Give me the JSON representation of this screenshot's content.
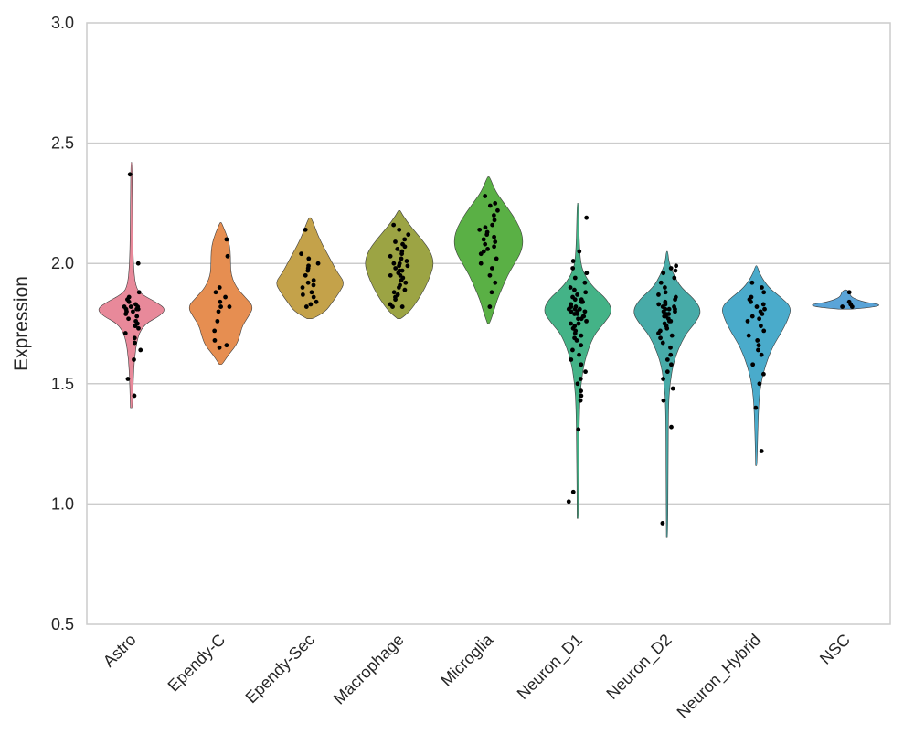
{
  "chart_data": {
    "type": "violin",
    "ylabel": "Expression",
    "ylim": [
      0.5,
      3.0
    ],
    "yticks": [
      "0.5",
      "1.0",
      "1.5",
      "2.0",
      "2.5",
      "3.0"
    ],
    "grid": true,
    "categories": [
      {
        "name": "Astro",
        "color": "#e8899a",
        "min": 1.4,
        "max": 2.42,
        "median": 1.81,
        "profile": [
          [
            1.4,
            0.03
          ],
          [
            1.5,
            0.05
          ],
          [
            1.6,
            0.08
          ],
          [
            1.7,
            0.18
          ],
          [
            1.75,
            0.4
          ],
          [
            1.78,
            0.8
          ],
          [
            1.81,
            1.0
          ],
          [
            1.84,
            0.7
          ],
          [
            1.87,
            0.3
          ],
          [
            1.9,
            0.12
          ],
          [
            2.0,
            0.05
          ],
          [
            2.2,
            0.03
          ],
          [
            2.42,
            0.02
          ]
        ],
        "points": [
          1.45,
          1.52,
          1.6,
          1.64,
          1.67,
          1.69,
          1.71,
          1.73,
          1.74,
          1.75,
          1.76,
          1.77,
          1.78,
          1.79,
          1.8,
          1.8,
          1.81,
          1.81,
          1.81,
          1.82,
          1.82,
          1.82,
          1.83,
          1.84,
          1.85,
          1.86,
          1.88,
          2.0,
          2.37
        ]
      },
      {
        "name": "Ependy-C",
        "color": "#e68e51",
        "min": 1.58,
        "max": 2.17,
        "median": 1.82,
        "profile": [
          [
            1.58,
            0.04
          ],
          [
            1.62,
            0.22
          ],
          [
            1.66,
            0.45
          ],
          [
            1.7,
            0.55
          ],
          [
            1.74,
            0.62
          ],
          [
            1.78,
            0.8
          ],
          [
            1.82,
            0.95
          ],
          [
            1.86,
            0.7
          ],
          [
            1.9,
            0.45
          ],
          [
            1.95,
            0.3
          ],
          [
            2.0,
            0.28
          ],
          [
            2.05,
            0.28
          ],
          [
            2.1,
            0.22
          ],
          [
            2.15,
            0.08
          ],
          [
            2.17,
            0.02
          ]
        ],
        "points": [
          1.65,
          1.66,
          1.68,
          1.72,
          1.76,
          1.8,
          1.82,
          1.82,
          1.84,
          1.86,
          1.88,
          1.9,
          2.03,
          2.1
        ]
      },
      {
        "name": "Ependy-Sec",
        "color": "#c4a24a",
        "min": 1.77,
        "max": 2.19,
        "median": 1.92,
        "profile": [
          [
            1.77,
            0.08
          ],
          [
            1.8,
            0.45
          ],
          [
            1.84,
            0.65
          ],
          [
            1.88,
            0.85
          ],
          [
            1.92,
            1.0
          ],
          [
            1.96,
            0.8
          ],
          [
            2.0,
            0.65
          ],
          [
            2.04,
            0.5
          ],
          [
            2.08,
            0.35
          ],
          [
            2.12,
            0.22
          ],
          [
            2.16,
            0.12
          ],
          [
            2.19,
            0.03
          ]
        ],
        "points": [
          1.82,
          1.83,
          1.84,
          1.86,
          1.87,
          1.88,
          1.9,
          1.91,
          1.92,
          1.93,
          1.95,
          1.97,
          1.98,
          1.99,
          2.0,
          2.02,
          2.04,
          2.14
        ]
      },
      {
        "name": "Macrophage",
        "color": "#9ca444",
        "min": 1.77,
        "max": 2.22,
        "median": 1.99,
        "profile": [
          [
            1.77,
            0.05
          ],
          [
            1.8,
            0.3
          ],
          [
            1.85,
            0.55
          ],
          [
            1.9,
            0.75
          ],
          [
            1.95,
            0.9
          ],
          [
            2.0,
            1.0
          ],
          [
            2.05,
            0.9
          ],
          [
            2.1,
            0.65
          ],
          [
            2.15,
            0.35
          ],
          [
            2.2,
            0.1
          ],
          [
            2.22,
            0.03
          ]
        ],
        "points": [
          1.82,
          1.82,
          1.83,
          1.85,
          1.86,
          1.87,
          1.88,
          1.89,
          1.9,
          1.91,
          1.92,
          1.93,
          1.94,
          1.95,
          1.95,
          1.96,
          1.97,
          1.97,
          1.98,
          1.99,
          1.99,
          2.0,
          2.0,
          2.01,
          2.02,
          2.03,
          2.04,
          2.05,
          2.06,
          2.07,
          2.08,
          2.09,
          2.1,
          2.12,
          2.14,
          2.16
        ]
      },
      {
        "name": "Microglia",
        "color": "#5ab045",
        "min": 1.75,
        "max": 2.36,
        "median": 2.08,
        "profile": [
          [
            1.75,
            0.03
          ],
          [
            1.8,
            0.15
          ],
          [
            1.85,
            0.25
          ],
          [
            1.9,
            0.4
          ],
          [
            1.95,
            0.55
          ],
          [
            2.0,
            0.75
          ],
          [
            2.05,
            0.95
          ],
          [
            2.1,
            1.0
          ],
          [
            2.15,
            0.9
          ],
          [
            2.2,
            0.7
          ],
          [
            2.25,
            0.45
          ],
          [
            2.3,
            0.2
          ],
          [
            2.36,
            0.03
          ]
        ],
        "points": [
          1.82,
          1.88,
          1.92,
          1.95,
          1.98,
          2.0,
          2.02,
          2.04,
          2.05,
          2.06,
          2.07,
          2.08,
          2.09,
          2.1,
          2.11,
          2.12,
          2.13,
          2.14,
          2.15,
          2.16,
          2.18,
          2.2,
          2.22,
          2.24,
          2.25,
          2.28
        ]
      },
      {
        "name": "Neuron_D1",
        "color": "#44b387",
        "min": 0.94,
        "max": 2.25,
        "median": 1.81,
        "profile": [
          [
            0.94,
            0.02
          ],
          [
            1.2,
            0.03
          ],
          [
            1.4,
            0.05
          ],
          [
            1.5,
            0.09
          ],
          [
            1.6,
            0.2
          ],
          [
            1.7,
            0.45
          ],
          [
            1.75,
            0.75
          ],
          [
            1.8,
            1.0
          ],
          [
            1.85,
            0.85
          ],
          [
            1.9,
            0.45
          ],
          [
            1.95,
            0.2
          ],
          [
            2.0,
            0.08
          ],
          [
            2.1,
            0.04
          ],
          [
            2.25,
            0.02
          ]
        ],
        "points": [
          1.01,
          1.05,
          1.31,
          1.43,
          1.45,
          1.47,
          1.5,
          1.52,
          1.55,
          1.58,
          1.6,
          1.62,
          1.64,
          1.66,
          1.68,
          1.69,
          1.7,
          1.71,
          1.72,
          1.73,
          1.74,
          1.75,
          1.75,
          1.76,
          1.77,
          1.77,
          1.78,
          1.78,
          1.79,
          1.79,
          1.8,
          1.8,
          1.8,
          1.81,
          1.81,
          1.81,
          1.82,
          1.82,
          1.82,
          1.83,
          1.83,
          1.84,
          1.84,
          1.85,
          1.85,
          1.86,
          1.87,
          1.88,
          1.89,
          1.9,
          1.92,
          1.94,
          1.96,
          1.98,
          2.01,
          2.05,
          2.19
        ]
      },
      {
        "name": "Neuron_D2",
        "color": "#47aba8",
        "min": 0.86,
        "max": 2.05,
        "median": 1.81,
        "profile": [
          [
            0.86,
            0.02
          ],
          [
            1.2,
            0.03
          ],
          [
            1.4,
            0.04
          ],
          [
            1.5,
            0.08
          ],
          [
            1.6,
            0.2
          ],
          [
            1.7,
            0.5
          ],
          [
            1.75,
            0.8
          ],
          [
            1.8,
            1.0
          ],
          [
            1.85,
            0.8
          ],
          [
            1.9,
            0.4
          ],
          [
            1.95,
            0.2
          ],
          [
            2.0,
            0.06
          ],
          [
            2.05,
            0.02
          ]
        ],
        "points": [
          0.92,
          1.32,
          1.43,
          1.48,
          1.52,
          1.55,
          1.58,
          1.6,
          1.62,
          1.65,
          1.67,
          1.69,
          1.7,
          1.71,
          1.72,
          1.73,
          1.74,
          1.75,
          1.76,
          1.76,
          1.77,
          1.78,
          1.78,
          1.79,
          1.79,
          1.8,
          1.8,
          1.81,
          1.81,
          1.81,
          1.82,
          1.82,
          1.83,
          1.83,
          1.84,
          1.85,
          1.86,
          1.87,
          1.88,
          1.9,
          1.92,
          1.94,
          1.96,
          1.97,
          1.98,
          1.99
        ]
      },
      {
        "name": "Neuron_Hybrid",
        "color": "#4aabcb",
        "min": 1.16,
        "max": 1.99,
        "median": 1.81,
        "profile": [
          [
            1.16,
            0.02
          ],
          [
            1.3,
            0.04
          ],
          [
            1.45,
            0.08
          ],
          [
            1.55,
            0.2
          ],
          [
            1.65,
            0.45
          ],
          [
            1.72,
            0.75
          ],
          [
            1.78,
            0.95
          ],
          [
            1.82,
            1.0
          ],
          [
            1.86,
            0.7
          ],
          [
            1.9,
            0.35
          ],
          [
            1.95,
            0.12
          ],
          [
            1.99,
            0.02
          ]
        ],
        "points": [
          1.22,
          1.4,
          1.5,
          1.54,
          1.58,
          1.62,
          1.64,
          1.66,
          1.68,
          1.7,
          1.72,
          1.74,
          1.76,
          1.77,
          1.78,
          1.79,
          1.8,
          1.81,
          1.82,
          1.83,
          1.84,
          1.85,
          1.86,
          1.88,
          1.9,
          1.92
        ]
      },
      {
        "name": "NSC",
        "color": "#5aa4d8",
        "min": 1.81,
        "max": 1.89,
        "median": 1.83,
        "profile": [
          [
            1.81,
            0.2
          ],
          [
            1.82,
            0.9
          ],
          [
            1.83,
            1.0
          ],
          [
            1.84,
            0.5
          ],
          [
            1.86,
            0.15
          ],
          [
            1.88,
            0.12
          ],
          [
            1.89,
            0.03
          ]
        ],
        "points": [
          1.82,
          1.82,
          1.83,
          1.84,
          1.88
        ]
      }
    ]
  }
}
